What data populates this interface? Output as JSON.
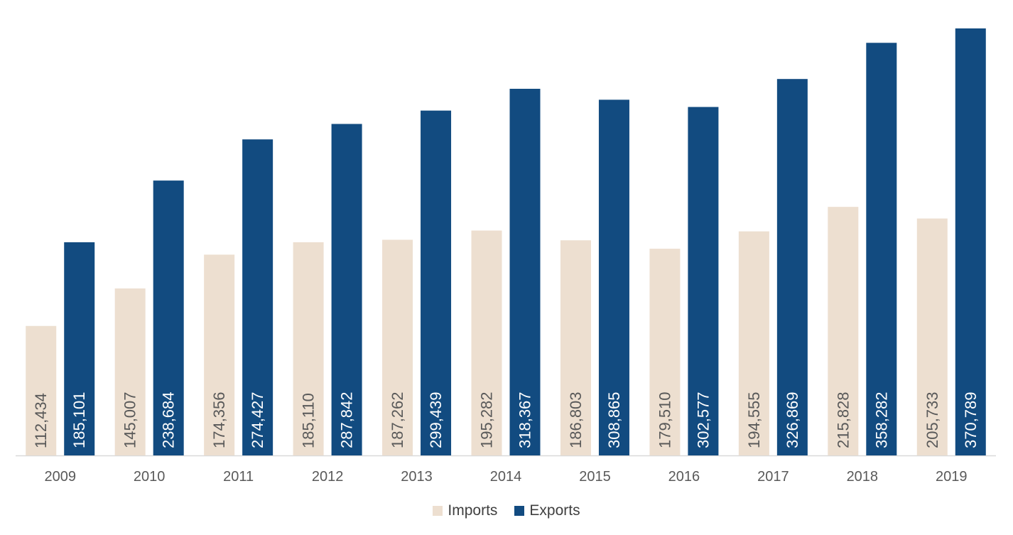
{
  "chart_data": {
    "type": "bar",
    "categories": [
      "2009",
      "2010",
      "2011",
      "2012",
      "2013",
      "2014",
      "2015",
      "2016",
      "2017",
      "2018",
      "2019"
    ],
    "series": [
      {
        "name": "Imports",
        "color": "#EDDFD0",
        "label_color": "#595959",
        "values": [
          112434,
          145007,
          174356,
          185110,
          187262,
          195282,
          186803,
          179510,
          194555,
          215828,
          205733
        ],
        "labels": [
          "112,434",
          "145,007",
          "174,356",
          "185,110",
          "187,262",
          "195,282",
          "186,803",
          "179,510",
          "194,555",
          "215,828",
          "205,733"
        ]
      },
      {
        "name": "Exports",
        "color": "#124B80",
        "label_color": "#FFFFFF",
        "values": [
          185101,
          238684,
          274427,
          287842,
          299439,
          318367,
          308865,
          302577,
          326869,
          358282,
          370789
        ],
        "labels": [
          "185,101",
          "238,684",
          "274,427",
          "287,842",
          "299,439",
          "318,367",
          "308,865",
          "302,577",
          "326,869",
          "358,282",
          "370,789"
        ]
      }
    ],
    "title": "",
    "xlabel": "",
    "ylabel": "",
    "ylim": [
      0,
      440000
    ],
    "grid": false,
    "legend": "bottom-center",
    "axis_line_color": "#D9D9D9"
  }
}
